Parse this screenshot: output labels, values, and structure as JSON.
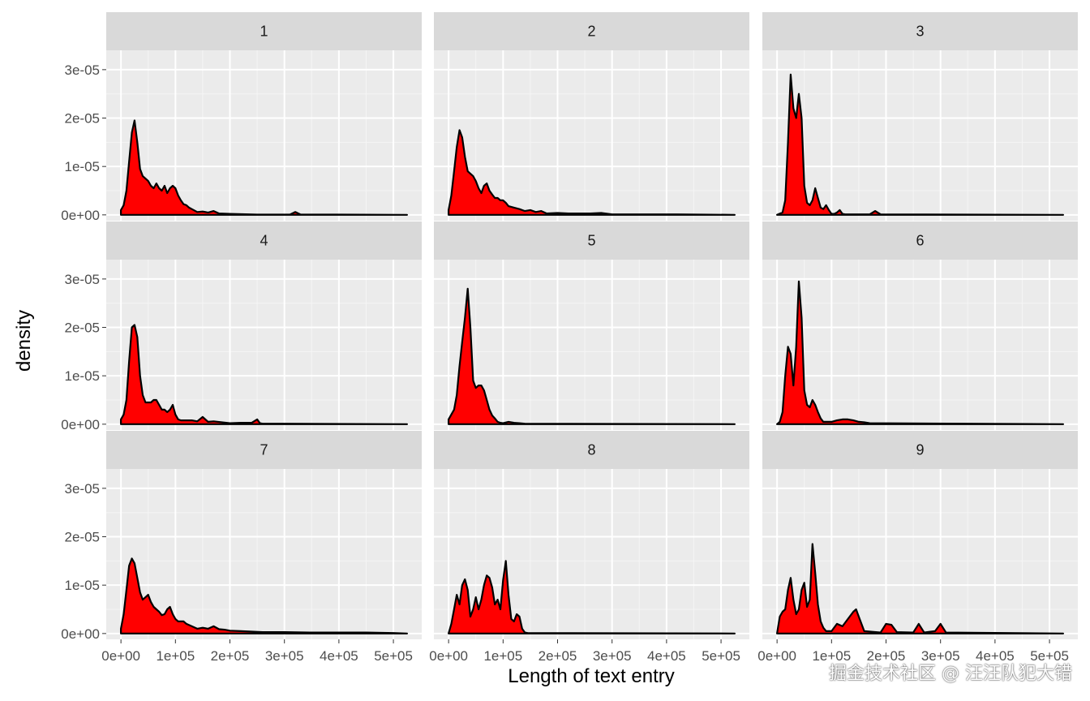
{
  "watermark": "掘金技术社区 @ 汪汪队犯大错",
  "chart_data": {
    "type": "area",
    "kind": "faceted density plot",
    "xlabel": "Length of text entry",
    "ylabel": "density",
    "xlim": [
      0,
      525000
    ],
    "ylim": [
      0,
      3.4e-05
    ],
    "x_ticks": [
      0,
      100000,
      200000,
      300000,
      400000,
      500000
    ],
    "x_tick_labels": [
      "0e+00",
      "1e+05",
      "2e+05",
      "3e+05",
      "4e+05",
      "5e+05"
    ],
    "y_ticks": [
      0,
      1e-05,
      2e-05,
      3e-05
    ],
    "y_tick_labels": [
      "0e+00",
      "1e-05",
      "2e-05",
      "3e-05"
    ],
    "fill_color": "#ff0000",
    "line_color": "#000000",
    "panel_background": "#ebebeb",
    "strip_background": "#d9d9d9",
    "grid": true,
    "panels": [
      {
        "label": "1",
        "x": [
          0,
          5000,
          10000,
          15000,
          20000,
          25000,
          30000,
          35000,
          40000,
          45000,
          50000,
          55000,
          60000,
          65000,
          70000,
          75000,
          80000,
          85000,
          90000,
          95000,
          100000,
          105000,
          110000,
          115000,
          120000,
          125000,
          130000,
          140000,
          150000,
          160000,
          170000,
          180000,
          200000,
          250000,
          310000,
          320000,
          330000,
          400000,
          525000
        ],
        "y": [
          1e-06,
          2e-06,
          5e-06,
          1.1e-05,
          1.7e-05,
          1.95e-05,
          1.5e-05,
          9.5e-06,
          8e-06,
          7.5e-06,
          7e-06,
          6e-06,
          5.5e-06,
          6.5e-06,
          5.5e-06,
          5e-06,
          6e-06,
          4.5e-06,
          5.5e-06,
          6e-06,
          5.5e-06,
          4e-06,
          3e-06,
          2.2e-06,
          2e-06,
          1.5e-06,
          1.2e-06,
          6e-07,
          7e-07,
          5e-07,
          8e-07,
          3e-07,
          2e-07,
          5e-08,
          5e-08,
          6e-07,
          5e-08,
          5e-08,
          0
        ]
      },
      {
        "label": "2",
        "x": [
          0,
          5000,
          10000,
          15000,
          20000,
          25000,
          30000,
          35000,
          40000,
          45000,
          50000,
          55000,
          60000,
          65000,
          70000,
          75000,
          80000,
          85000,
          90000,
          95000,
          100000,
          105000,
          110000,
          120000,
          130000,
          140000,
          150000,
          160000,
          170000,
          180000,
          200000,
          220000,
          260000,
          280000,
          300000,
          420000,
          525000
        ],
        "y": [
          1e-06,
          4e-06,
          9e-06,
          1.4e-05,
          1.75e-05,
          1.6e-05,
          1.2e-05,
          9e-06,
          8.5e-06,
          8e-06,
          7e-06,
          5.5e-06,
          4.5e-06,
          6e-06,
          6.5e-06,
          5e-06,
          4.2e-06,
          3.5e-06,
          3.5e-06,
          3e-06,
          3e-06,
          2.5e-06,
          1.8e-06,
          1.5e-06,
          1.2e-06,
          8e-07,
          1e-06,
          6e-07,
          8e-07,
          3e-07,
          4e-07,
          3e-07,
          3e-07,
          4e-07,
          1e-07,
          1e-07,
          0
        ]
      },
      {
        "label": "3",
        "x": [
          0,
          10000,
          15000,
          20000,
          25000,
          30000,
          35000,
          40000,
          45000,
          50000,
          55000,
          60000,
          65000,
          70000,
          75000,
          80000,
          85000,
          90000,
          95000,
          100000,
          105000,
          110000,
          115000,
          120000,
          125000,
          130000,
          140000,
          170000,
          180000,
          190000,
          525000
        ],
        "y": [
          0,
          5e-07,
          3e-06,
          1.5e-05,
          2.9e-05,
          2.2e-05,
          2e-05,
          2.5e-05,
          2e-05,
          6e-06,
          2.5e-06,
          2e-06,
          3e-06,
          5.5e-06,
          3.5e-06,
          1.5e-06,
          1.2e-06,
          2e-06,
          1e-06,
          2e-07,
          2e-07,
          5e-07,
          1e-06,
          2e-07,
          1e-07,
          1e-07,
          1e-07,
          1e-07,
          8e-07,
          1e-07,
          0
        ]
      },
      {
        "label": "4",
        "x": [
          0,
          5000,
          10000,
          15000,
          20000,
          25000,
          30000,
          35000,
          40000,
          45000,
          50000,
          55000,
          60000,
          65000,
          70000,
          75000,
          80000,
          85000,
          90000,
          95000,
          100000,
          105000,
          110000,
          120000,
          130000,
          140000,
          150000,
          160000,
          170000,
          200000,
          220000,
          240000,
          250000,
          255000,
          260000,
          300000,
          525000
        ],
        "y": [
          1e-06,
          2e-06,
          5e-06,
          1.3e-05,
          2e-05,
          2.05e-05,
          1.8e-05,
          1e-05,
          6e-06,
          4.5e-06,
          4.5e-06,
          4.5e-06,
          5e-06,
          5e-06,
          4e-06,
          3e-06,
          3e-06,
          2.5e-06,
          3e-06,
          4e-06,
          2e-06,
          1e-06,
          8e-07,
          8e-07,
          8e-07,
          6e-07,
          1.5e-06,
          5e-07,
          6e-07,
          2e-07,
          3e-07,
          3e-07,
          1e-06,
          2e-07,
          1e-07,
          1e-07,
          0
        ]
      },
      {
        "label": "5",
        "x": [
          0,
          5000,
          10000,
          15000,
          20000,
          25000,
          30000,
          35000,
          40000,
          45000,
          50000,
          55000,
          60000,
          65000,
          70000,
          75000,
          80000,
          85000,
          90000,
          95000,
          100000,
          110000,
          120000,
          130000,
          140000,
          525000
        ],
        "y": [
          1e-06,
          2e-06,
          3e-06,
          6e-06,
          1.2e-05,
          1.7e-05,
          2.2e-05,
          2.8e-05,
          2e-05,
          9e-06,
          7.5e-06,
          8e-06,
          8e-06,
          7e-06,
          5e-06,
          3e-06,
          1.8e-06,
          1.2e-06,
          5e-07,
          3e-07,
          2e-07,
          5e-07,
          3e-07,
          2e-07,
          1e-07,
          0
        ]
      },
      {
        "label": "6",
        "x": [
          0,
          5000,
          10000,
          15000,
          20000,
          25000,
          30000,
          35000,
          40000,
          45000,
          50000,
          55000,
          60000,
          65000,
          70000,
          75000,
          80000,
          85000,
          90000,
          100000,
          110000,
          120000,
          130000,
          140000,
          150000,
          160000,
          170000,
          525000
        ],
        "y": [
          0,
          5e-07,
          2.5e-06,
          1e-05,
          1.6e-05,
          1.45e-05,
          8e-06,
          1.6e-05,
          2.95e-05,
          2.2e-05,
          7e-06,
          4e-06,
          3.5e-06,
          5e-06,
          4e-06,
          2.5e-06,
          1.2e-06,
          5e-07,
          5e-07,
          5e-07,
          8e-07,
          1e-06,
          1e-06,
          8e-07,
          5e-07,
          4e-07,
          2e-07,
          0
        ]
      },
      {
        "label": "7",
        "x": [
          0,
          5000,
          10000,
          15000,
          20000,
          25000,
          30000,
          35000,
          40000,
          45000,
          50000,
          55000,
          60000,
          65000,
          70000,
          75000,
          80000,
          85000,
          90000,
          95000,
          100000,
          105000,
          110000,
          115000,
          120000,
          130000,
          140000,
          150000,
          160000,
          170000,
          180000,
          190000,
          200000,
          220000,
          240000,
          260000,
          300000,
          350000,
          400000,
          450000,
          500000,
          525000
        ],
        "y": [
          1e-06,
          4e-06,
          9e-06,
          1.4e-05,
          1.55e-05,
          1.45e-05,
          1.15e-05,
          8.5e-06,
          7e-06,
          7.5e-06,
          8e-06,
          6.5e-06,
          5.5e-06,
          5e-06,
          4.5e-06,
          3.8e-06,
          4e-06,
          5e-06,
          5.5e-06,
          4e-06,
          3e-06,
          2.5e-06,
          2.5e-06,
          2.5e-06,
          2e-06,
          1.5e-06,
          1e-06,
          1.2e-06,
          1e-06,
          1.5e-06,
          9e-07,
          8e-07,
          6e-07,
          5e-07,
          4e-07,
          3e-07,
          3e-07,
          2e-07,
          2e-07,
          2e-07,
          1e-07,
          0
        ]
      },
      {
        "label": "8",
        "x": [
          0,
          5000,
          10000,
          15000,
          20000,
          25000,
          30000,
          35000,
          40000,
          45000,
          50000,
          55000,
          60000,
          65000,
          70000,
          75000,
          80000,
          85000,
          90000,
          95000,
          100000,
          105000,
          110000,
          115000,
          120000,
          125000,
          130000,
          135000,
          140000,
          145000,
          525000
        ],
        "y": [
          0,
          2e-06,
          5e-06,
          8e-06,
          6e-06,
          1e-05,
          1.12e-05,
          9e-06,
          3.5e-06,
          5e-06,
          7.5e-06,
          5e-06,
          7e-06,
          1e-05,
          1.2e-05,
          1.15e-05,
          9.5e-06,
          6e-06,
          7e-06,
          5e-06,
          1.1e-05,
          1.5e-05,
          8e-06,
          3e-06,
          2.5e-06,
          4e-06,
          3.5e-06,
          1e-06,
          2e-07,
          1e-07,
          0
        ]
      },
      {
        "label": "9",
        "x": [
          0,
          5000,
          10000,
          15000,
          20000,
          25000,
          30000,
          35000,
          40000,
          45000,
          50000,
          55000,
          60000,
          65000,
          70000,
          75000,
          80000,
          85000,
          90000,
          95000,
          100000,
          110000,
          120000,
          130000,
          140000,
          145000,
          150000,
          160000,
          190000,
          200000,
          210000,
          220000,
          250000,
          260000,
          270000,
          290000,
          300000,
          310000,
          525000
        ],
        "y": [
          0,
          3.5e-06,
          4.5e-06,
          5e-06,
          9e-06,
          1.15e-05,
          7e-06,
          4e-06,
          5e-06,
          9e-06,
          1.05e-05,
          5.5e-06,
          7e-06,
          1.85e-05,
          1.25e-05,
          6e-06,
          2.5e-06,
          1.2e-06,
          5e-07,
          5e-07,
          5e-07,
          2e-06,
          1.5e-06,
          3e-06,
          4.5e-06,
          5e-06,
          3.5e-06,
          5e-07,
          2e-07,
          2e-06,
          1.8e-06,
          3e-07,
          2e-07,
          2e-06,
          2e-07,
          5e-07,
          2e-06,
          2e-07,
          0
        ]
      }
    ]
  }
}
